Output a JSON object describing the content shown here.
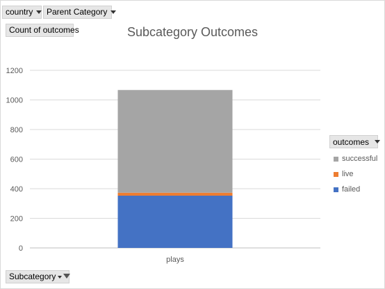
{
  "filters": {
    "country_label": "country",
    "parent_category_label": "Parent Category",
    "value_field_label": "Count of outcomes",
    "axis_field_label": "Subcategory"
  },
  "chart_data": {
    "type": "bar",
    "stacked": true,
    "title": "Subcategory Outcomes",
    "categories": [
      "plays"
    ],
    "series": [
      {
        "name": "failed",
        "values": [
          353
        ],
        "color": "#4472c4"
      },
      {
        "name": "live",
        "values": [
          20
        ],
        "color": "#ed7d31"
      },
      {
        "name": "successful",
        "values": [
          694
        ],
        "color": "#a5a5a5"
      }
    ],
    "ylim": [
      0,
      1200
    ],
    "yticks": [
      0,
      200,
      400,
      600,
      800,
      1000,
      1200
    ],
    "grid": true,
    "legend_position": "right"
  },
  "legend": {
    "header_label": "outcomes",
    "items": [
      {
        "name": "successful",
        "color": "#a5a5a5"
      },
      {
        "name": "live",
        "color": "#ed7d31"
      },
      {
        "name": "failed",
        "color": "#4472c4"
      }
    ]
  }
}
